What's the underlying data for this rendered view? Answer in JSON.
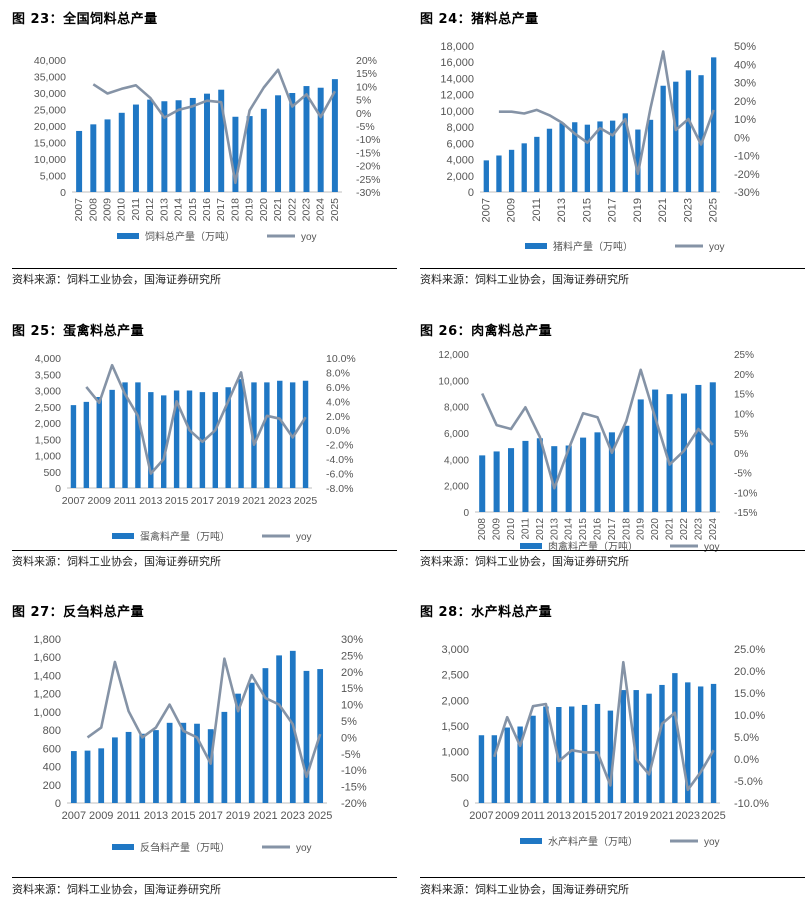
{
  "source_prefix": "资料来源：",
  "source_text": "饲料工业协会，国海证券研究所",
  "colors": {
    "bar": "#1f77c4",
    "line": "#8593a6",
    "rule": "#000000"
  },
  "chart_data": [
    {
      "id": "c23",
      "title": "图 23：全国饲料总产量",
      "type": "bar",
      "categories": [
        "2007",
        "2008",
        "2009",
        "2010",
        "2011",
        "2012",
        "2013",
        "2014",
        "2015",
        "2016",
        "2017",
        "2018",
        "2019",
        "2020",
        "2021",
        "2022",
        "2023",
        "2024",
        "2025"
      ],
      "x_tick_labels": [
        "2007",
        "2008",
        "2009",
        "2010",
        "2011",
        "2012",
        "2013",
        "2014",
        "2015",
        "2016",
        "2017",
        "2018",
        "2019",
        "2020",
        "2021",
        "2022",
        "2023",
        "2024",
        "2025"
      ],
      "bar_series": {
        "name": "饲料总产量（万吨）",
        "values": [
          18500,
          20500,
          22000,
          24000,
          26500,
          28000,
          27500,
          27800,
          28500,
          29800,
          31000,
          22800,
          23000,
          25200,
          29300,
          30000,
          32100,
          31600,
          34200
        ]
      },
      "line_series": {
        "name": "yoy",
        "values": [
          null,
          10.8,
          7.3,
          9.1,
          10.4,
          5.7,
          -1.8,
          1.1,
          2.5,
          4.6,
          4.0,
          -26.5,
          0.9,
          9.6,
          16.3,
          2.4,
          7.0,
          -1.6,
          8.2
        ]
      },
      "y_left": {
        "min": 0,
        "max": 40000,
        "ticks": [
          0,
          5000,
          10000,
          15000,
          20000,
          25000,
          30000,
          35000,
          40000
        ],
        "tick_labels": [
          "0",
          "5,000",
          "10,000",
          "15,000",
          "20,000",
          "25,000",
          "30,000",
          "35,000",
          "40,000"
        ]
      },
      "y_right": {
        "min": -30,
        "max": 20,
        "ticks": [
          -30,
          -25,
          -20,
          -15,
          -10,
          -5,
          0,
          5,
          10,
          15,
          20
        ],
        "tick_labels": [
          "-30%",
          "-25%",
          "-20%",
          "-15%",
          "-10%",
          "-5%",
          "0%",
          "5%",
          "10%",
          "15%",
          "20%"
        ]
      },
      "legend": "bottom"
    },
    {
      "id": "c24",
      "title": "图 24：猪料总产量",
      "type": "bar",
      "categories": [
        "2007",
        "2008",
        "2009",
        "2010",
        "2011",
        "2012",
        "2013",
        "2014",
        "2015",
        "2016",
        "2017",
        "2018",
        "2019",
        "2020",
        "2021",
        "2022",
        "2023",
        "2024",
        "2025"
      ],
      "x_tick_labels": [
        "2007",
        "",
        "2009",
        "",
        "2011",
        "",
        "2013",
        "",
        "2015",
        "",
        "2017",
        "",
        "2019",
        "",
        "2021",
        "",
        "2023",
        "",
        "2025"
      ],
      "bar_series": {
        "name": "猪料产量（万吨）",
        "values": [
          3900,
          4500,
          5200,
          6000,
          6800,
          7800,
          8500,
          8600,
          8300,
          8700,
          8800,
          9700,
          7700,
          8900,
          13100,
          13600,
          15000,
          14400,
          16600
        ]
      },
      "line_series": {
        "name": "yoy",
        "values": [
          null,
          14,
          14,
          13,
          15,
          12,
          8,
          2,
          -3,
          5,
          1,
          10,
          -20,
          16,
          47,
          4,
          10,
          -4,
          15
        ]
      },
      "y_left": {
        "min": 0,
        "max": 18000,
        "ticks": [
          0,
          2000,
          4000,
          6000,
          8000,
          10000,
          12000,
          14000,
          16000,
          18000
        ],
        "tick_labels": [
          "0",
          "2,000",
          "4,000",
          "6,000",
          "8,000",
          "10,000",
          "12,000",
          "14,000",
          "16,000",
          "18,000"
        ]
      },
      "y_right": {
        "min": -30,
        "max": 50,
        "ticks": [
          -30,
          -20,
          -10,
          0,
          10,
          20,
          30,
          40,
          50
        ],
        "tick_labels": [
          "-30%",
          "-20%",
          "-10%",
          "0%",
          "10%",
          "20%",
          "30%",
          "40%",
          "50%"
        ]
      },
      "legend": "bottom"
    },
    {
      "id": "c25",
      "title": "图 25：蛋禽料总产量",
      "type": "bar",
      "categories": [
        "2007",
        "2008",
        "2009",
        "2010",
        "2011",
        "2012",
        "2013",
        "2014",
        "2015",
        "2016",
        "2017",
        "2018",
        "2019",
        "2020",
        "2021",
        "2022",
        "2023",
        "2024",
        "2025"
      ],
      "x_tick_labels": [
        "2007",
        "",
        "2009",
        "",
        "2011",
        "",
        "2013",
        "",
        "2015",
        "",
        "2017",
        "",
        "2019",
        "",
        "2021",
        "",
        "2023",
        "",
        "2025"
      ],
      "bar_series": {
        "name": "蛋禽料产量（万吨）",
        "values": [
          2550,
          2650,
          2800,
          3020,
          3250,
          3250,
          2950,
          2850,
          3000,
          3000,
          2950,
          2950,
          3100,
          3350,
          3250,
          3250,
          3300,
          3250,
          3300
        ]
      },
      "line_series": {
        "name": "yoy",
        "values": [
          null,
          6.0,
          3.8,
          9.0,
          5.0,
          2.0,
          -6.0,
          -4.0,
          4.0,
          0,
          -1.6,
          0,
          4.0,
          8.0,
          -2.0,
          2.0,
          1.6,
          -1.0,
          1.8
        ]
      },
      "y_left": {
        "min": 0,
        "max": 4000,
        "ticks": [
          0,
          500,
          1000,
          1500,
          2000,
          2500,
          3000,
          3500,
          4000
        ],
        "tick_labels": [
          "0",
          "500",
          "1,000",
          "1,500",
          "2,000",
          "2,500",
          "3,000",
          "3,500",
          "4,000"
        ]
      },
      "y_right": {
        "min": -8,
        "max": 10,
        "ticks": [
          -8,
          -6,
          -4,
          -2,
          0,
          2,
          4,
          6,
          8,
          10
        ],
        "tick_labels": [
          "-8.0%",
          "-6.0%",
          "-4.0%",
          "-2.0%",
          "0.0%",
          "2.0%",
          "4.0%",
          "6.0%",
          "8.0%",
          "10.0%"
        ]
      },
      "legend": "bottom"
    },
    {
      "id": "c26",
      "title": "图 26：肉禽料总产量",
      "type": "bar",
      "categories": [
        "2008",
        "2009",
        "2010",
        "2011",
        "2012",
        "2013",
        "2014",
        "2015",
        "2016",
        "2017",
        "2018",
        "2019",
        "2020",
        "2021",
        "2022",
        "2023",
        "2024"
      ],
      "x_tick_labels": [
        "2008",
        "2009",
        "2010",
        "2011",
        "2012",
        "2013",
        "2014",
        "2015",
        "2016",
        "2017",
        "2018",
        "2019",
        "2020",
        "2021",
        "2022",
        "2023",
        "2024"
      ],
      "bar_series": {
        "name": "肉禽料产量（万吨）",
        "values": [
          4300,
          4600,
          4850,
          5400,
          5600,
          5000,
          5050,
          5650,
          6050,
          6050,
          6550,
          8550,
          9300,
          8950,
          9000,
          9650,
          9850
        ]
      },
      "line_series": {
        "name": "yoy",
        "values": [
          15,
          7,
          6,
          11.5,
          4,
          -9,
          1,
          10,
          9,
          0,
          8,
          21,
          9,
          -3,
          0.5,
          6,
          2
        ]
      },
      "y_left": {
        "min": 0,
        "max": 12000,
        "ticks": [
          0,
          2000,
          4000,
          6000,
          8000,
          10000,
          12000
        ],
        "tick_labels": [
          "0",
          "2,000",
          "4,000",
          "6,000",
          "8,000",
          "10,000",
          "12,000"
        ]
      },
      "y_right": {
        "min": -15,
        "max": 25,
        "ticks": [
          -15,
          -10,
          -5,
          0,
          5,
          10,
          15,
          20,
          25
        ],
        "tick_labels": [
          "-15%",
          "-10%",
          "-5%",
          "0%",
          "5%",
          "10%",
          "15%",
          "20%",
          "25%"
        ]
      },
      "legend": "bottom"
    },
    {
      "id": "c27",
      "title": "图 27：反刍料总产量",
      "type": "bar",
      "categories": [
        "2007",
        "2008",
        "2009",
        "2010",
        "2011",
        "2012",
        "2013",
        "2014",
        "2015",
        "2016",
        "2017",
        "2018",
        "2019",
        "2020",
        "2021",
        "2022",
        "2023",
        "2024",
        "2025"
      ],
      "x_tick_labels": [
        "2007",
        "",
        "2009",
        "",
        "2011",
        "",
        "2013",
        "",
        "2015",
        "",
        "2017",
        "",
        "2019",
        "",
        "2021",
        "",
        "2023",
        "",
        "2025"
      ],
      "bar_series": {
        "name": "反刍料产量（万吨）",
        "values": [
          570,
          575,
          600,
          720,
          780,
          760,
          800,
          880,
          880,
          870,
          810,
          1000,
          1200,
          1320,
          1480,
          1620,
          1670,
          1450,
          1470
        ]
      },
      "line_series": {
        "name": "yoy",
        "values": [
          null,
          0,
          3,
          23,
          8,
          0,
          3,
          10,
          2,
          0,
          -8,
          24,
          8,
          19,
          12,
          10,
          4,
          -12,
          1
        ]
      },
      "y_left": {
        "min": 0,
        "max": 1800,
        "ticks": [
          0,
          200,
          400,
          600,
          800,
          1000,
          1200,
          1400,
          1600,
          1800
        ],
        "tick_labels": [
          "0",
          "200",
          "400",
          "600",
          "800",
          "1,000",
          "1,200",
          "1,400",
          "1,600",
          "1,800"
        ]
      },
      "y_right": {
        "min": -20,
        "max": 30,
        "ticks": [
          -20,
          -15,
          -10,
          -5,
          0,
          5,
          10,
          15,
          20,
          25,
          30
        ],
        "tick_labels": [
          "-20%",
          "-15%",
          "-10%",
          "-5%",
          "0%",
          "5%",
          "10%",
          "15%",
          "20%",
          "25%",
          "30%"
        ]
      },
      "legend": "bottom"
    },
    {
      "id": "c28",
      "title": "图 28：水产料总产量",
      "type": "bar",
      "categories": [
        "2007",
        "2008",
        "2009",
        "2010",
        "2011",
        "2012",
        "2013",
        "2014",
        "2015",
        "2016",
        "2017",
        "2018",
        "2019",
        "2020",
        "2021",
        "2022",
        "2023",
        "2024",
        "2025"
      ],
      "x_tick_labels": [
        "2007",
        "",
        "2009",
        "",
        "2011",
        "",
        "2013",
        "",
        "2015",
        "",
        "2017",
        "",
        "2019",
        "",
        "2021",
        "",
        "2023",
        "",
        "2025"
      ],
      "bar_series": {
        "name": "水产料产量（万吨）",
        "values": [
          1320,
          1320,
          1470,
          1490,
          1700,
          1880,
          1870,
          1880,
          1910,
          1930,
          1800,
          2200,
          2200,
          2130,
          2300,
          2530,
          2350,
          2270,
          2320
        ]
      },
      "line_series": {
        "name": "yoy",
        "values": [
          null,
          0.5,
          9.5,
          3,
          12,
          12.5,
          -0.5,
          2,
          1.5,
          1.5,
          -6,
          22,
          0,
          -3.5,
          8,
          10.5,
          -7,
          -3,
          2
        ]
      },
      "y_left": {
        "min": 0,
        "max": 3000,
        "ticks": [
          0,
          500,
          1000,
          1500,
          2000,
          2500,
          3000
        ],
        "tick_labels": [
          "0",
          "500",
          "1,000",
          "1,500",
          "2,000",
          "2,500",
          "3,000"
        ]
      },
      "y_right": {
        "min": -10,
        "max": 25,
        "ticks": [
          -10,
          -5,
          0,
          5,
          10,
          15,
          20,
          25
        ],
        "tick_labels": [
          "-10.0%",
          "-5.0%",
          "0.0%",
          "5.0%",
          "10.0%",
          "15.0%",
          "20.0%",
          "25.0%"
        ]
      },
      "legend": "bottom"
    }
  ]
}
